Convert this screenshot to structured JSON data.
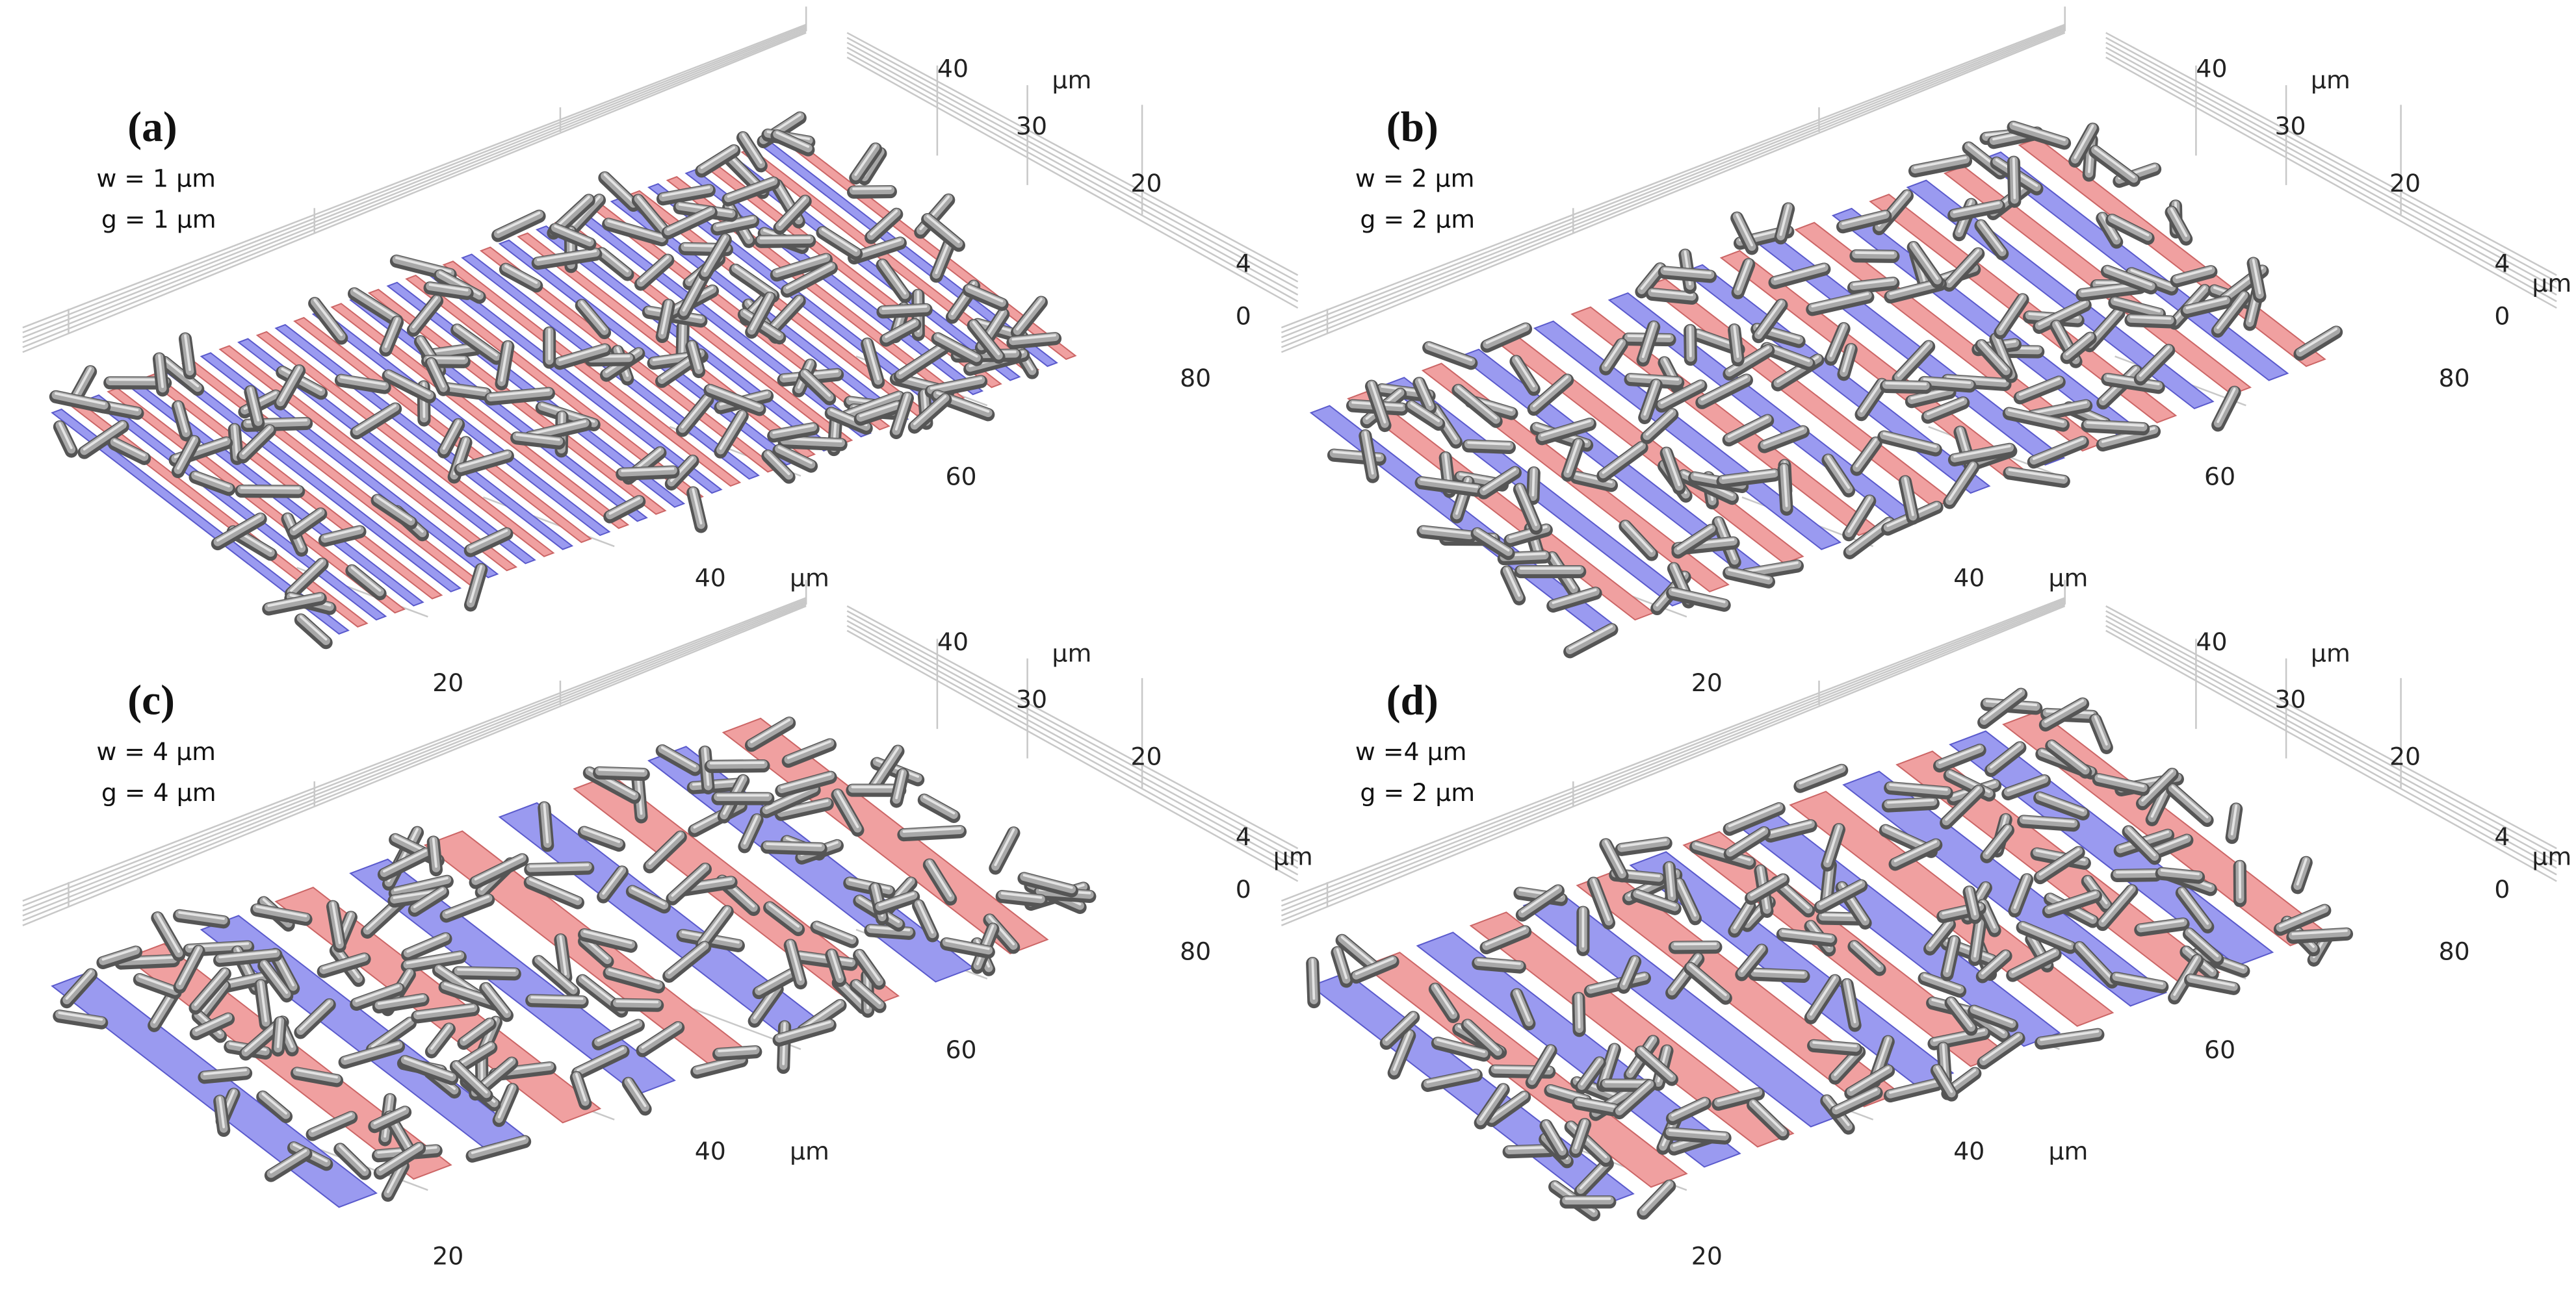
{
  "panels": [
    {
      "label": "(a)",
      "w": "w = 1 μm",
      "g": "g = 1 μm",
      "y_ticks": [
        "40",
        "30",
        "20"
      ],
      "z_ticks": [
        "4",
        "0"
      ],
      "x_ticks": [
        "80",
        "60",
        "40",
        "20"
      ],
      "units": [
        "μm",
        "μm"
      ]
    },
    {
      "label": "(b)",
      "w": "w = 2 μm",
      "g": "g = 2 μm",
      "y_ticks": [
        "40",
        "30",
        "20"
      ],
      "z_ticks": [
        "4",
        "0"
      ],
      "x_ticks": [
        "80",
        "60",
        "40",
        "20"
      ],
      "units": [
        "μm",
        "μm",
        "μm"
      ]
    },
    {
      "label": "(c)",
      "w": "w = 4 μm",
      "g": "g = 4 μm",
      "y_ticks": [
        "40",
        "30",
        "20"
      ],
      "z_ticks": [
        "4",
        "0"
      ],
      "x_ticks": [
        "80",
        "60",
        "40",
        "20"
      ],
      "units": [
        "μm",
        "μm",
        "μm"
      ]
    },
    {
      "label": "(d)",
      "w": "w =4 μm",
      "g": "g = 2 μm",
      "y_ticks": [
        "40",
        "30",
        "20"
      ],
      "z_ticks": [
        "4",
        "0"
      ],
      "x_ticks": [
        "80",
        "60",
        "40",
        "20"
      ],
      "units": [
        "μm",
        "μm",
        "μm"
      ]
    }
  ]
}
